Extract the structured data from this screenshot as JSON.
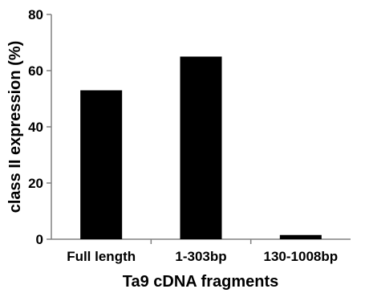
{
  "chart_data": {
    "type": "bar",
    "categories": [
      "Full length",
      "1-303bp",
      "130-1008bp"
    ],
    "values": [
      53,
      65,
      1.5
    ],
    "title": "",
    "xlabel": "Ta9 cDNA fragments",
    "ylabel": "class II expression (%)",
    "ylim": [
      0,
      80
    ],
    "yticks": [
      "0",
      "20",
      "40",
      "60",
      "80"
    ],
    "bar_color": "#000000",
    "axis_color": "#808080",
    "grid": false
  }
}
